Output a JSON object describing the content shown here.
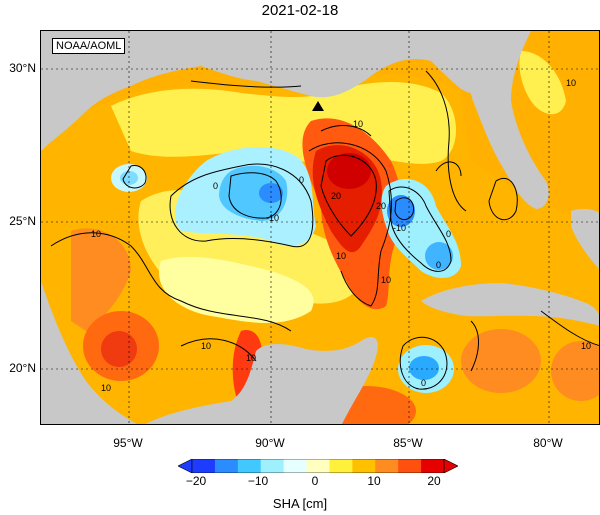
{
  "title": "2021-02-18",
  "credit": "NOAA/AOML",
  "map": {
    "lat_labels": [
      "30°N",
      "25°N",
      "20°N"
    ],
    "lon_labels": [
      "95°W",
      "90°W",
      "85°W",
      "80°W"
    ],
    "contour_labels": [
      "10",
      "10",
      "10",
      "10",
      "10",
      "0",
      "0",
      "0",
      "-10",
      "20",
      "20",
      "-10",
      "0",
      "10",
      "10",
      "10",
      "0",
      "10"
    ],
    "land_color": "#c8c8c8",
    "grid": true
  },
  "colorbar": {
    "ticks": [
      "−20",
      "−10",
      "0",
      "10",
      "20"
    ],
    "label": "SHA [cm]",
    "colors": [
      "#1e3cff",
      "#2a8cff",
      "#40c8ff",
      "#9ff0ff",
      "#e6ffff",
      "#ffffc0",
      "#fff03c",
      "#ffc000",
      "#ff8c20",
      "#ff5010",
      "#e60000"
    ]
  }
}
